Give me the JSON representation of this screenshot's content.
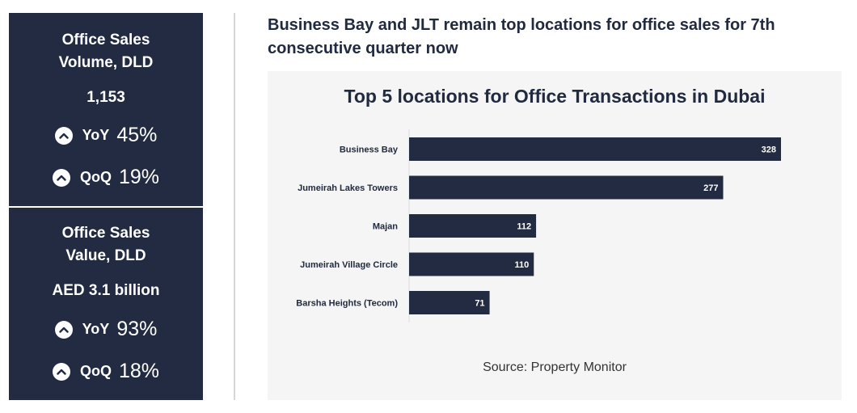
{
  "left_panel": {
    "volume": {
      "title_line1": "Office Sales",
      "title_line2": "Volume, DLD",
      "value": "1,153",
      "yoy_label": "YoY",
      "yoy_value": "45%",
      "qoq_label": "QoQ",
      "qoq_value": "19%"
    },
    "value": {
      "title_line1": "Office Sales",
      "title_line2": "Value, DLD",
      "value": "AED 3.1 billion",
      "yoy_label": "YoY",
      "yoy_value": "93%",
      "qoq_label": "QoQ",
      "qoq_value": "18%"
    }
  },
  "headline_line1": "Business Bay and JLT remain top locations for office sales for 7th",
  "headline_line2": "consecutive quarter now",
  "source": "Source: Property Monitor",
  "colors": {
    "panel": "#232b42",
    "bar": "#232b42",
    "chart_bg": "#f5f5f5"
  },
  "chart_data": {
    "type": "bar",
    "orientation": "horizontal",
    "title": "Top 5 locations for Office Transactions in Dubai",
    "categories": [
      "Business Bay",
      "Jumeirah Lakes Towers",
      "Majan",
      "Jumeirah Village Circle",
      "Barsha Heights (Tecom)"
    ],
    "values": [
      328,
      277,
      112,
      110,
      71
    ],
    "xlabel": "",
    "ylabel": "",
    "xlim": [
      0,
      350
    ],
    "grid": false,
    "data_labels": true
  }
}
